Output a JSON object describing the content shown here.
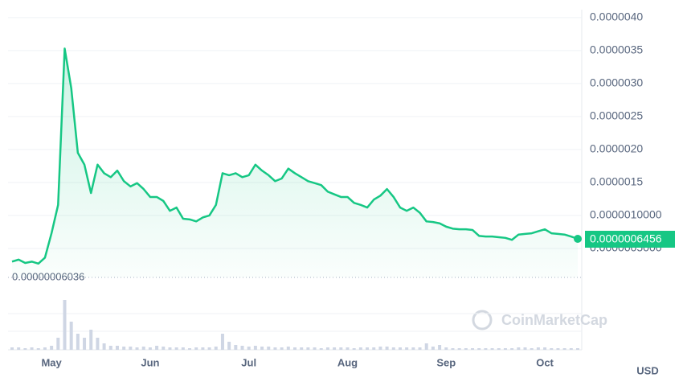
{
  "chart_data": {
    "type": "line",
    "categories": [
      null,
      null,
      null,
      null,
      null,
      null,
      "May",
      null,
      null,
      null,
      null,
      null,
      null,
      null,
      null,
      null,
      null,
      null,
      null,
      null,
      null,
      "Jun",
      null,
      null,
      null,
      null,
      null,
      null,
      null,
      null,
      null,
      null,
      null,
      null,
      null,
      null,
      "Jul",
      null,
      null,
      null,
      null,
      null,
      null,
      null,
      null,
      null,
      null,
      null,
      null,
      null,
      null,
      "Aug",
      null,
      null,
      null,
      null,
      null,
      null,
      null,
      null,
      null,
      null,
      null,
      null,
      null,
      null,
      "Sep",
      null,
      null,
      null,
      null,
      null,
      null,
      null,
      null,
      null,
      null,
      null,
      null,
      null,
      null,
      "Oct",
      null,
      null,
      null,
      null,
      null
    ],
    "series": [
      {
        "name": "Price",
        "color": "#16c784",
        "values": [
          3e-07,
          3.3e-07,
          2.8e-07,
          3e-07,
          2.7e-07,
          3.6e-07,
          7.3e-07,
          1.16e-06,
          3.53e-06,
          2.93e-06,
          1.95e-06,
          1.77e-06,
          1.34e-06,
          1.77e-06,
          1.64e-06,
          1.58e-06,
          1.68e-06,
          1.52e-06,
          1.44e-06,
          1.49e-06,
          1.4e-06,
          1.28e-06,
          1.28e-06,
          1.22e-06,
          1.07e-06,
          1.12e-06,
          9.5e-07,
          9.4e-07,
          9.1e-07,
          9.7e-07,
          1e-06,
          1.16e-06,
          1.64e-06,
          1.61e-06,
          1.64e-06,
          1.58e-06,
          1.61e-06,
          1.77e-06,
          1.68e-06,
          1.61e-06,
          1.52e-06,
          1.56e-06,
          1.71e-06,
          1.64e-06,
          1.58e-06,
          1.52e-06,
          1.49e-06,
          1.46e-06,
          1.36e-06,
          1.32e-06,
          1.28e-06,
          1.28e-06,
          1.19e-06,
          1.16e-06,
          1.12e-06,
          1.24e-06,
          1.3e-06,
          1.4e-06,
          1.28e-06,
          1.12e-06,
          1.07e-06,
          1.12e-06,
          1.04e-06,
          9.1e-07,
          9e-07,
          8.8e-07,
          8.3e-07,
          8e-07,
          7.9e-07,
          7.9e-07,
          7.8e-07,
          6.9e-07,
          6.8e-07,
          6.8e-07,
          6.7e-07,
          6.6e-07,
          6.3e-07,
          7.1e-07,
          7.2e-07,
          7.3e-07,
          7.6e-07,
          7.9e-07,
          7.3e-07,
          7.2e-07,
          7.1e-07,
          6.8e-07,
          6.456e-07
        ]
      },
      {
        "name": "Volume",
        "color": "#cfd6e4",
        "axis": "y2",
        "values": [
          3,
          3,
          2,
          3,
          2,
          3,
          5,
          15,
          62,
          35,
          20,
          15,
          25,
          15,
          8,
          5,
          5,
          4,
          4,
          3,
          4,
          3,
          5,
          4,
          3,
          3,
          3,
          2,
          3,
          3,
          3,
          4,
          20,
          10,
          6,
          5,
          4,
          5,
          4,
          4,
          3,
          3,
          4,
          3,
          3,
          3,
          3,
          2,
          3,
          3,
          3,
          3,
          2,
          3,
          3,
          3,
          4,
          4,
          3,
          3,
          3,
          3,
          3,
          8,
          4,
          6,
          3,
          2,
          2,
          2,
          2,
          2,
          2,
          2,
          2,
          2,
          2,
          3,
          3,
          2,
          3,
          3,
          2,
          2,
          2,
          2,
          2
        ]
      }
    ],
    "ylim": [
      6.036e-08,
      4.12e-06
    ],
    "yticks": [
      {
        "value": 4e-06,
        "label": "0.0000040"
      },
      {
        "value": 3.5e-06,
        "label": "0.0000035"
      },
      {
        "value": 3e-06,
        "label": "0.0000030"
      },
      {
        "value": 2.5e-06,
        "label": "0.0000025"
      },
      {
        "value": 2e-06,
        "label": "0.0000020"
      },
      {
        "value": 1.5e-06,
        "label": "0.0000015"
      },
      {
        "value": 1e-06,
        "label": "0.0000010000"
      },
      {
        "value": 5e-07,
        "label": "0.0000005000"
      }
    ],
    "y2lim": [
      0,
      65
    ],
    "grid": true,
    "low_line": {
      "value": 6.036e-08,
      "label": "0.00000006036"
    },
    "current_price": {
      "value": 6.456e-07,
      "label": "0.0000006456"
    },
    "watermark": "CoinMarketCap",
    "currency": "USD"
  }
}
